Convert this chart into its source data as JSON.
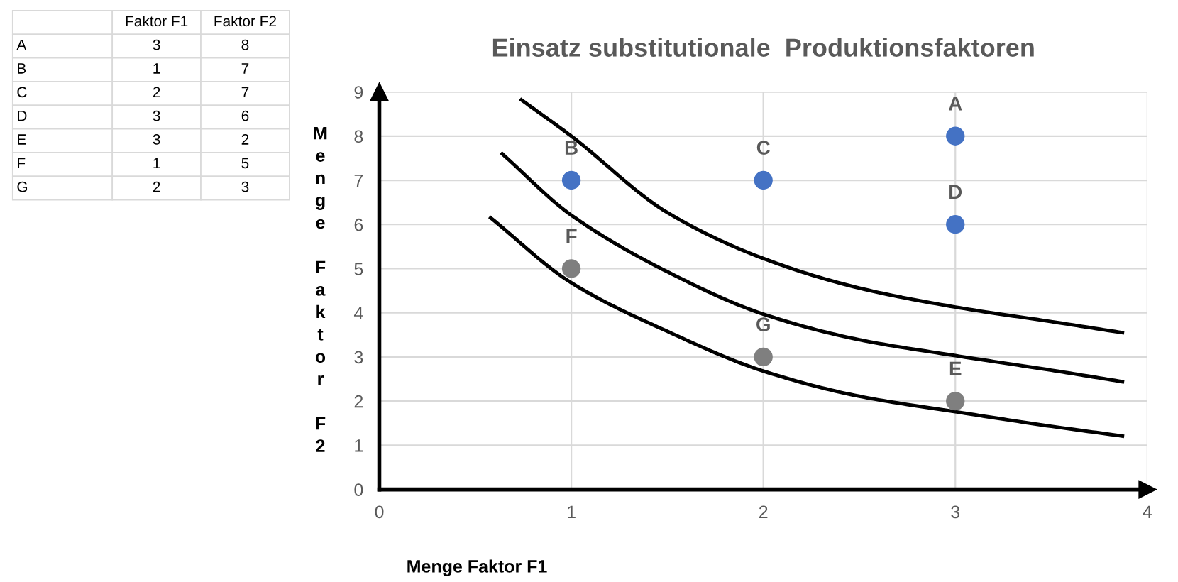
{
  "chart_data": [
    {
      "type": "other",
      "categories": [
        "A",
        "B",
        "C",
        "D",
        "E",
        "F",
        "G"
      ],
      "data_labels": true,
      "series": [
        {
          "name": "Faktor F1",
          "values": [
            3,
            1,
            2,
            3,
            3,
            1,
            2
          ]
        },
        {
          "name": "Faktor F2",
          "values": [
            8,
            7,
            7,
            6,
            2,
            5,
            3
          ]
        }
      ]
    },
    {
      "type": "scatter",
      "title": "Einsatz substitutionale  Produktionsfaktoren",
      "xlabel": "Menge Faktor F1",
      "ylabel": "Menge Faktor F2",
      "xlim": [
        0,
        4
      ],
      "ylim": [
        0,
        9
      ],
      "xticks": [
        0,
        1,
        2,
        3,
        4
      ],
      "yticks": [
        0,
        1,
        2,
        3,
        4,
        5,
        6,
        7,
        8,
        9
      ],
      "grid": true,
      "legend": false,
      "series": [
        {
          "color": "#4472c4",
          "marker": "circle",
          "x": [
            3,
            1,
            2,
            3
          ],
          "values": [
            8,
            7,
            7,
            6
          ]
        },
        {
          "color": "#7f7f7f",
          "marker": "circle",
          "x": [
            3,
            1,
            2
          ],
          "values": [
            2,
            5,
            3
          ]
        },
        {
          "type": "line",
          "color": "#000000",
          "x": [
            0.74,
            1,
            1.5,
            2,
            2.5,
            3,
            3.5,
            3.87
          ],
          "values": [
            8.82,
            8.0,
            6.27,
            5.23,
            4.56,
            4.13,
            3.8,
            3.55
          ]
        },
        {
          "type": "line",
          "color": "#000000",
          "x": [
            0.64,
            1,
            1.5,
            2,
            2.5,
            3,
            3.5,
            3.87
          ],
          "values": [
            7.6,
            6.21,
            4.93,
            3.97,
            3.39,
            3.03,
            2.7,
            2.44
          ]
        },
        {
          "type": "line",
          "color": "#000000",
          "x": [
            0.58,
            1,
            1.5,
            2,
            2.5,
            3,
            3.5,
            3.87
          ],
          "values": [
            6.15,
            4.68,
            3.58,
            2.68,
            2.11,
            1.76,
            1.43,
            1.21
          ]
        }
      ],
      "annotations": [
        {
          "text": "A",
          "x": 3,
          "y": 8
        },
        {
          "text": "B",
          "x": 1,
          "y": 7
        },
        {
          "text": "C",
          "x": 2,
          "y": 7
        },
        {
          "text": "D",
          "x": 3,
          "y": 6
        },
        {
          "text": "E",
          "x": 3,
          "y": 2
        },
        {
          "text": "F",
          "x": 1,
          "y": 5
        },
        {
          "text": "G",
          "x": 2,
          "y": 3
        }
      ]
    }
  ]
}
